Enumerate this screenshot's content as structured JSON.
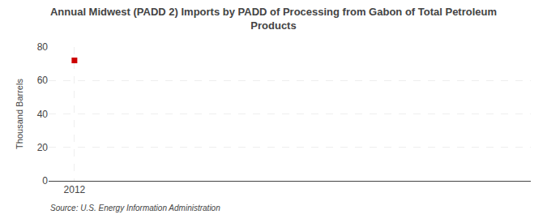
{
  "chart_data": {
    "type": "scatter",
    "title": "Annual Midwest (PADD 2) Imports by PADD of Processing from Gabon of Total Petroleum\nProducts",
    "ylabel": "Thousand Barrels",
    "x": [
      2012
    ],
    "values": [
      72
    ],
    "color": "#cc0000",
    "marker": "square",
    "xlim": [
      2011.4,
      2022.6
    ],
    "xticks": [
      2012
    ],
    "ylim": [
      0,
      80
    ],
    "yticks": [
      0,
      20,
      40,
      60,
      80
    ],
    "grid": true,
    "annotations": [
      "Source: U.S. Energy Information Administration"
    ]
  }
}
